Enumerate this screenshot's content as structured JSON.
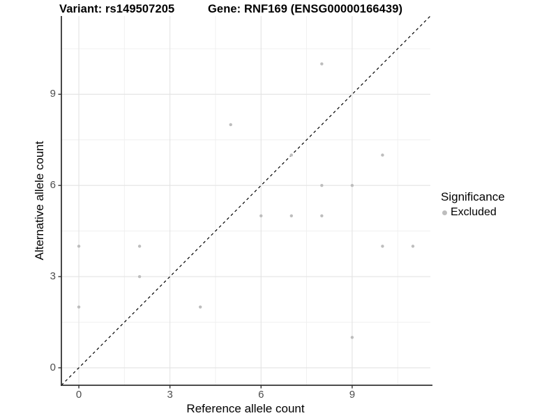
{
  "figure": {
    "title_left": "Variant: rs149507205",
    "title_right": "Gene: RNF169 (ENSG00000166439)"
  },
  "axes": {
    "x_label": "Reference allele count",
    "y_label": "Alternative allele count"
  },
  "legend": {
    "title": "Significance",
    "items": [
      {
        "label": "Excluded",
        "color": "#bdbdbd"
      }
    ]
  },
  "colors": {
    "background": "#ffffff",
    "point": "#bdbdbd",
    "axis_line": "#333333",
    "grid_major": "#e3e3e3",
    "grid_minor": "#efefef",
    "tick_mark": "#333333",
    "tick_text": "#4d4d4d",
    "reference_line": "#000000"
  },
  "chart_data": {
    "type": "scatter",
    "title": "Variant: rs149507205 — Gene: RNF169 (ENSG00000166439)",
    "xlabel": "Reference allele count",
    "ylabel": "Alternative allele count",
    "xlim": [
      -0.575,
      11.575
    ],
    "ylim": [
      -0.575,
      11.575
    ],
    "x_ticks": [
      0,
      3,
      6,
      9
    ],
    "y_ticks": [
      0,
      3,
      6,
      9
    ],
    "x_tick_labels": [
      "0",
      "3",
      "6",
      "9"
    ],
    "y_tick_labels": [
      "0",
      "3",
      "6",
      "9"
    ],
    "minor_ticks": [
      1.5,
      4.5,
      7.5,
      10.5
    ],
    "grid": true,
    "legend_position": "right",
    "series": [
      {
        "name": "Excluded",
        "color": "#bdbdbd",
        "points": [
          [
            0,
            2
          ],
          [
            0,
            4
          ],
          [
            2,
            3
          ],
          [
            2,
            4
          ],
          [
            4,
            2
          ],
          [
            5,
            8
          ],
          [
            6,
            5
          ],
          [
            7,
            5
          ],
          [
            7,
            7
          ],
          [
            8,
            5
          ],
          [
            8,
            6
          ],
          [
            8,
            10
          ],
          [
            9,
            1
          ],
          [
            9,
            6
          ],
          [
            10,
            4
          ],
          [
            10,
            7
          ],
          [
            11,
            4
          ]
        ]
      }
    ],
    "reference_line": {
      "type": "identity y=x",
      "style": "dashed",
      "color": "#000000"
    }
  }
}
